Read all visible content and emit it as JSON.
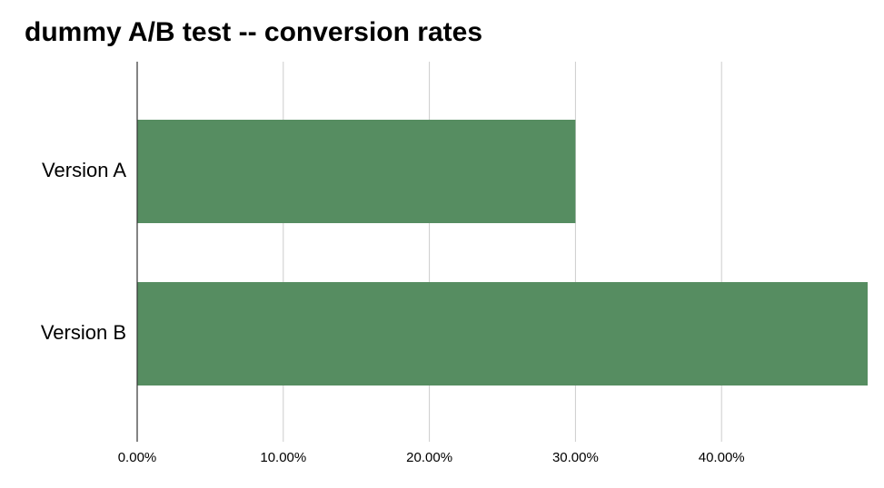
{
  "chart_data": {
    "type": "bar",
    "orientation": "horizontal",
    "title": "dummy A/B test -- conversion rates",
    "categories": [
      "Version A",
      "Version B"
    ],
    "values": [
      30,
      50
    ],
    "color": "#568d61",
    "xlim": [
      0,
      50
    ],
    "xticks": [
      {
        "value": 0,
        "label": "0.00%"
      },
      {
        "value": 10,
        "label": "10.00%"
      },
      {
        "value": 20,
        "label": "20.00%"
      },
      {
        "value": 30,
        "label": "30.00%"
      },
      {
        "value": 40,
        "label": "40.00%"
      }
    ],
    "grid": true
  }
}
